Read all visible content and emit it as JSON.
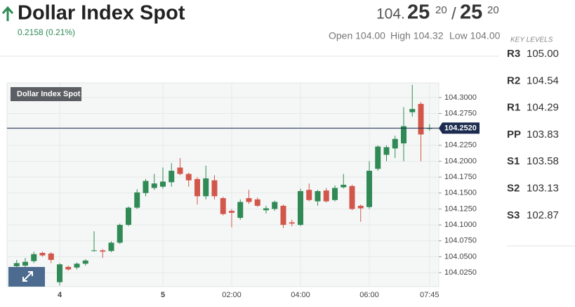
{
  "header": {
    "title": "Dollar Index Spot",
    "change": "0.2158 (0.21%)",
    "price": {
      "handle": "104.",
      "bid": "25",
      "bid_frac": "20",
      "sep": "/",
      "ask": "25",
      "ask_frac": "20"
    },
    "stats": [
      "Open 104.00",
      "High 104.32",
      "Low 104.00"
    ]
  },
  "key_levels": {
    "title": "KEY LEVELS",
    "rows": [
      {
        "label": "R3",
        "value": "105.00"
      },
      {
        "label": "R2",
        "value": "104.54"
      },
      {
        "label": "R1",
        "value": "104.29"
      },
      {
        "label": "PP",
        "value": "103.83"
      },
      {
        "label": "S1",
        "value": "103.58"
      },
      {
        "label": "S2",
        "value": "103.13"
      },
      {
        "label": "S3",
        "value": "102.87"
      }
    ]
  },
  "chart_data": {
    "type": "candlestick",
    "title": "Dollar Index Spot",
    "categories": [
      null,
      null,
      null,
      null,
      null,
      "4",
      null,
      null,
      null,
      null,
      null,
      null,
      null,
      null,
      null,
      null,
      null,
      "5",
      null,
      null,
      null,
      null,
      null,
      null,
      null,
      "02:00",
      null,
      null,
      null,
      null,
      null,
      null,
      null,
      "04:00",
      null,
      null,
      null,
      null,
      null,
      null,
      null,
      "06:00",
      null,
      null,
      null,
      null,
      null,
      null,
      "07:45"
    ],
    "open": [
      104.035,
      104.036,
      104.043,
      104.056,
      104.055,
      104.01,
      104.034,
      104.033,
      104.039,
      104.059,
      104.06,
      104.059,
      104.072,
      104.1,
      104.127,
      104.15,
      104.158,
      104.16,
      104.167,
      104.19,
      104.18,
      104.172,
      104.145,
      104.17,
      104.142,
      104.122,
      104.111,
      104.142,
      104.14,
      104.123,
      104.125,
      104.13,
      104.104,
      104.1,
      104.155,
      104.137,
      104.154,
      104.139,
      104.159,
      104.161,
      104.13,
      104.128,
      104.188,
      104.21,
      104.22,
      104.228,
      104.277,
      104.29,
      104.251
    ],
    "high": [
      104.045,
      104.048,
      104.058,
      104.058,
      104.057,
      104.04,
      104.036,
      104.041,
      104.046,
      104.09,
      104.062,
      104.074,
      104.102,
      104.129,
      104.156,
      104.172,
      104.18,
      104.19,
      104.197,
      104.205,
      104.182,
      104.175,
      104.193,
      104.178,
      104.144,
      104.125,
      104.14,
      104.155,
      104.143,
      104.13,
      104.138,
      104.132,
      104.108,
      104.157,
      104.165,
      104.155,
      104.158,
      104.162,
      104.18,
      104.163,
      104.132,
      104.2,
      104.225,
      104.225,
      104.24,
      104.285,
      104.32,
      104.293,
      104.258
    ],
    "low": [
      104.028,
      104.033,
      104.04,
      104.05,
      104.04,
      104.005,
      104.028,
      104.03,
      104.036,
      104.058,
      104.048,
      104.057,
      104.07,
      104.098,
      104.125,
      104.145,
      104.155,
      104.157,
      104.16,
      104.178,
      104.16,
      104.132,
      104.14,
      104.14,
      104.115,
      104.096,
      104.108,
      104.133,
      104.128,
      104.118,
      104.122,
      104.095,
      104.098,
      104.098,
      104.137,
      104.13,
      104.135,
      104.137,
      104.157,
      104.123,
      104.105,
      104.125,
      104.185,
      104.2,
      104.205,
      104.2,
      104.27,
      104.2,
      104.248
    ],
    "close": [
      104.04,
      104.042,
      104.054,
      104.052,
      104.045,
      104.038,
      104.03,
      104.039,
      104.044,
      104.06,
      104.058,
      104.072,
      104.1,
      104.127,
      104.151,
      104.169,
      104.165,
      104.168,
      104.185,
      104.18,
      104.17,
      104.145,
      104.173,
      104.145,
      104.117,
      104.119,
      104.136,
      104.136,
      104.13,
      104.126,
      104.136,
      104.1,
      104.102,
      104.153,
      104.139,
      104.153,
      104.137,
      104.158,
      104.163,
      104.125,
      104.126,
      104.185,
      104.223,
      104.222,
      104.235,
      104.255,
      104.282,
      104.242,
      104.252
    ],
    "up_color": "#2f8a55",
    "down_color": "#d2574b",
    "ylim": [
      104.003,
      104.323
    ],
    "yticks": [
      {
        "value": 104.025,
        "label": "104.0250"
      },
      {
        "value": 104.05,
        "label": "104.0500"
      },
      {
        "value": 104.075,
        "label": "104.0750"
      },
      {
        "value": 104.1,
        "label": "104.1000"
      },
      {
        "value": 104.125,
        "label": "104.1250"
      },
      {
        "value": 104.15,
        "label": "104.1500"
      },
      {
        "value": 104.175,
        "label": "104.1750"
      },
      {
        "value": 104.2,
        "label": "104.2000"
      },
      {
        "value": 104.225,
        "label": "104.2250"
      },
      {
        "value": 104.25,
        "label": "104.2500"
      },
      {
        "value": 104.275,
        "label": "104.2750"
      },
      {
        "value": 104.3,
        "label": "104.3000"
      }
    ],
    "price_line": {
      "value": 104.252,
      "label": "104.2520",
      "color": "#1c2b4f"
    },
    "grid": true
  }
}
